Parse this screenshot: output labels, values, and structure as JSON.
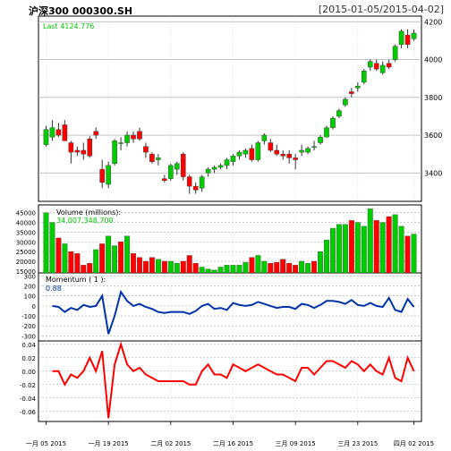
{
  "header": {
    "title": "沪深300 000300.SH",
    "date_range": "[2015-01-05/2015-04-02]"
  },
  "chart_data": [
    {
      "type": "candlestick",
      "panel": "price",
      "annotation": "Last 4124.776",
      "ylim": [
        3250,
        4230
      ],
      "yticks": [
        3400,
        3600,
        3800,
        4000,
        4200
      ],
      "colors": {
        "up": "#00cc00",
        "down": "#ff0000"
      },
      "candles": [
        {
          "o": 3550,
          "h": 3650,
          "l": 3540,
          "c": 3630
        },
        {
          "o": 3590,
          "h": 3680,
          "l": 3570,
          "c": 3640
        },
        {
          "o": 3630,
          "h": 3665,
          "l": 3590,
          "c": 3600
        },
        {
          "o": 3655,
          "h": 3680,
          "l": 3570,
          "c": 3570
        },
        {
          "o": 3560,
          "h": 3570,
          "l": 3450,
          "c": 3510
        },
        {
          "o": 3520,
          "h": 3540,
          "l": 3490,
          "c": 3510
        },
        {
          "o": 3520,
          "h": 3560,
          "l": 3470,
          "c": 3500
        },
        {
          "o": 3580,
          "h": 3595,
          "l": 3480,
          "c": 3490
        },
        {
          "o": 3620,
          "h": 3640,
          "l": 3580,
          "c": 3600
        },
        {
          "o": 3420,
          "h": 3470,
          "l": 3320,
          "c": 3350
        },
        {
          "o": 3340,
          "h": 3460,
          "l": 3320,
          "c": 3440
        },
        {
          "o": 3450,
          "h": 3580,
          "l": 3440,
          "c": 3570
        },
        {
          "o": 3560,
          "h": 3590,
          "l": 3520,
          "c": 3560
        },
        {
          "o": 3560,
          "h": 3620,
          "l": 3540,
          "c": 3600
        },
        {
          "o": 3600,
          "h": 3620,
          "l": 3560,
          "c": 3580
        },
        {
          "o": 3620,
          "h": 3640,
          "l": 3570,
          "c": 3580
        },
        {
          "o": 3540,
          "h": 3560,
          "l": 3480,
          "c": 3510
        },
        {
          "o": 3500,
          "h": 3510,
          "l": 3450,
          "c": 3460
        },
        {
          "o": 3470,
          "h": 3500,
          "l": 3440,
          "c": 3480
        },
        {
          "o": 3370,
          "h": 3390,
          "l": 3350,
          "c": 3360
        },
        {
          "o": 3370,
          "h": 3450,
          "l": 3360,
          "c": 3440
        },
        {
          "o": 3420,
          "h": 3460,
          "l": 3390,
          "c": 3450
        },
        {
          "o": 3500,
          "h": 3510,
          "l": 3360,
          "c": 3380
        },
        {
          "o": 3380,
          "h": 3390,
          "l": 3290,
          "c": 3330
        },
        {
          "o": 3330,
          "h": 3350,
          "l": 3290,
          "c": 3310
        },
        {
          "o": 3320,
          "h": 3390,
          "l": 3300,
          "c": 3380
        },
        {
          "o": 3400,
          "h": 3430,
          "l": 3380,
          "c": 3420
        },
        {
          "o": 3420,
          "h": 3440,
          "l": 3400,
          "c": 3430
        },
        {
          "o": 3430,
          "h": 3450,
          "l": 3420,
          "c": 3440
        },
        {
          "o": 3440,
          "h": 3480,
          "l": 3420,
          "c": 3470
        },
        {
          "o": 3460,
          "h": 3500,
          "l": 3440,
          "c": 3490
        },
        {
          "o": 3490,
          "h": 3520,
          "l": 3470,
          "c": 3510
        },
        {
          "o": 3500,
          "h": 3530,
          "l": 3480,
          "c": 3520
        },
        {
          "o": 3530,
          "h": 3550,
          "l": 3460,
          "c": 3470
        },
        {
          "o": 3470,
          "h": 3570,
          "l": 3460,
          "c": 3560
        },
        {
          "o": 3570,
          "h": 3610,
          "l": 3550,
          "c": 3600
        },
        {
          "o": 3560,
          "h": 3580,
          "l": 3510,
          "c": 3520
        },
        {
          "o": 3520,
          "h": 3550,
          "l": 3490,
          "c": 3500
        },
        {
          "o": 3500,
          "h": 3520,
          "l": 3470,
          "c": 3490
        },
        {
          "o": 3500,
          "h": 3520,
          "l": 3450,
          "c": 3480
        },
        {
          "o": 3480,
          "h": 3500,
          "l": 3420,
          "c": 3470
        },
        {
          "o": 3510,
          "h": 3550,
          "l": 3490,
          "c": 3520
        },
        {
          "o": 3510,
          "h": 3540,
          "l": 3500,
          "c": 3530
        },
        {
          "o": 3540,
          "h": 3570,
          "l": 3520,
          "c": 3540
        },
        {
          "o": 3560,
          "h": 3600,
          "l": 3550,
          "c": 3590
        },
        {
          "o": 3590,
          "h": 3650,
          "l": 3590,
          "c": 3640
        },
        {
          "o": 3640,
          "h": 3700,
          "l": 3630,
          "c": 3690
        },
        {
          "o": 3700,
          "h": 3740,
          "l": 3690,
          "c": 3730
        },
        {
          "o": 3760,
          "h": 3800,
          "l": 3750,
          "c": 3790
        },
        {
          "o": 3830,
          "h": 3850,
          "l": 3800,
          "c": 3820
        },
        {
          "o": 3850,
          "h": 3880,
          "l": 3830,
          "c": 3860
        },
        {
          "o": 3880,
          "h": 3950,
          "l": 3870,
          "c": 3940
        },
        {
          "o": 3960,
          "h": 4000,
          "l": 3940,
          "c": 3990
        },
        {
          "o": 3980,
          "h": 4000,
          "l": 3940,
          "c": 3950
        },
        {
          "o": 3930,
          "h": 3990,
          "l": 3920,
          "c": 3970
        },
        {
          "o": 3980,
          "h": 4000,
          "l": 3950,
          "c": 3960
        },
        {
          "o": 4000,
          "h": 4080,
          "l": 3990,
          "c": 4070
        },
        {
          "o": 4080,
          "h": 4160,
          "l": 4060,
          "c": 4150
        },
        {
          "o": 4130,
          "h": 4160,
          "l": 4060,
          "c": 4080
        },
        {
          "o": 4110,
          "h": 4160,
          "l": 4100,
          "c": 4140
        }
      ]
    },
    {
      "type": "bar",
      "panel": "volume",
      "title": "Volume (millions):",
      "annotation": "34,007,348,700",
      "ylim": [
        14000,
        49000
      ],
      "yticks": [
        15000,
        20000,
        25000,
        30000,
        35000,
        40000,
        45000
      ],
      "values": [
        45000,
        40000,
        32000,
        29000,
        25000,
        24000,
        18000,
        19000,
        26000,
        29000,
        33000,
        28000,
        30000,
        33000,
        24000,
        22000,
        20000,
        22000,
        21000,
        20000,
        20000,
        19000,
        20000,
        23000,
        19000,
        17000,
        16000,
        15500,
        17000,
        18000,
        18000,
        18000,
        19500,
        22000,
        23000,
        20000,
        19000,
        19500,
        21000,
        19000,
        18000,
        20000,
        19000,
        20000,
        25000,
        31000,
        37000,
        39000,
        39000,
        41000,
        40000,
        38000,
        47000,
        41000,
        40000,
        43000,
        44000,
        38000,
        33000,
        34000
      ],
      "up": [
        true,
        true,
        false,
        true,
        false,
        false,
        false,
        false,
        true,
        false,
        true,
        true,
        false,
        true,
        false,
        false,
        false,
        false,
        true,
        false,
        true,
        true,
        false,
        false,
        false,
        true,
        true,
        true,
        true,
        true,
        true,
        true,
        true,
        false,
        true,
        true,
        false,
        false,
        false,
        false,
        false,
        true,
        true,
        false,
        true,
        true,
        true,
        true,
        true,
        false,
        true,
        true,
        true,
        false,
        true,
        false,
        true,
        true,
        false,
        true
      ]
    },
    {
      "type": "line",
      "panel": "momentum-1",
      "title": "Momentum ( 1 ):",
      "annotation": "0.88",
      "ylim": [
        -350,
        330
      ],
      "yticks": [
        -300,
        -200,
        -100,
        0,
        100,
        200,
        300
      ],
      "color": "#0033aa",
      "values": [
        null,
        0,
        -10,
        -60,
        -20,
        -40,
        10,
        -10,
        0,
        100,
        -280,
        -100,
        140,
        50,
        0,
        20,
        -10,
        -30,
        -60,
        -70,
        -60,
        -60,
        -60,
        -80,
        -50,
        0,
        20,
        -30,
        -20,
        -40,
        30,
        10,
        0,
        10,
        40,
        20,
        0,
        -20,
        -10,
        -10,
        -30,
        20,
        10,
        -20,
        10,
        50,
        50,
        40,
        20,
        60,
        10,
        0,
        30,
        0,
        -10,
        80,
        -40,
        -60,
        70,
        -10
      ]
    },
    {
      "type": "line",
      "panel": "momentum-pct",
      "ylim": [
        -0.075,
        0.045
      ],
      "yticks": [
        -0.06,
        -0.04,
        -0.02,
        0.0,
        0.02,
        0.04
      ],
      "color": "#ff0000",
      "values": [
        null,
        0.0,
        0.0,
        -0.02,
        -0.005,
        -0.01,
        0.0,
        0.02,
        0.0,
        0.03,
        -0.07,
        0.01,
        0.04,
        0.01,
        0.0,
        0.005,
        -0.005,
        -0.01,
        -0.015,
        -0.015,
        -0.015,
        -0.015,
        -0.015,
        -0.02,
        -0.02,
        0.0,
        0.01,
        -0.005,
        -0.005,
        -0.01,
        0.01,
        0.005,
        0.0,
        0.005,
        0.01,
        0.005,
        0.0,
        -0.005,
        -0.005,
        -0.01,
        -0.015,
        0.005,
        0.005,
        -0.005,
        0.005,
        0.015,
        0.015,
        0.01,
        0.005,
        0.015,
        0.01,
        0.0,
        0.01,
        0.0,
        -0.005,
        0.02,
        -0.01,
        -0.015,
        0.02,
        0.0
      ]
    }
  ],
  "xaxis": {
    "labels": [
      "一月 05 2015",
      "一月 19 2015",
      "二月 02 2015",
      "二月 16 2015",
      "三月 09 2015",
      "三月 23 2015",
      "四月 02 2015"
    ],
    "label_index": [
      0,
      10,
      20,
      30,
      40,
      50,
      59
    ]
  }
}
